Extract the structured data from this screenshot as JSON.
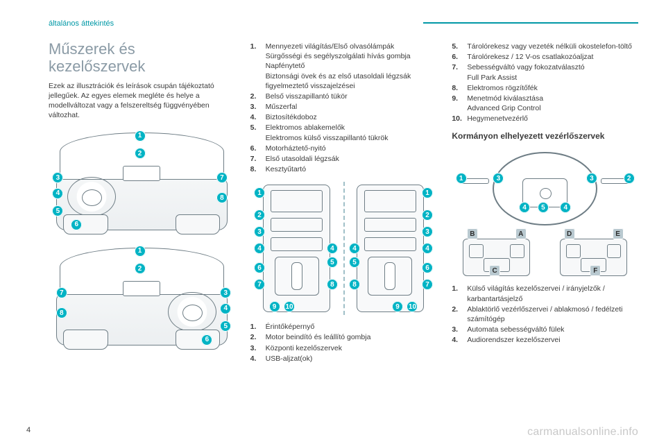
{
  "colors": {
    "accent": "#0098a6",
    "callout": "#00b3c4",
    "heading": "#8a9aa5",
    "text": "#3a3a3a",
    "line": "#6e7d85"
  },
  "section_label": "általános áttekintés",
  "title": "Műszerek és kezelőszervek",
  "intro": "Ezek az illusztrációk és leírások csupán tájékoztató jellegűek. Az egyes elemek megléte és helye a modellváltozat vagy a felszereltség függvényében változhat.",
  "dash_callouts": [
    "1",
    "2",
    "3",
    "4",
    "5",
    "6",
    "7",
    "8"
  ],
  "col2_list_a": [
    {
      "n": "1.",
      "lines": [
        "Mennyezeti világítás/Első olvasólámpák",
        "Sürgősségi és segélyszolgálati hívás gombja",
        "Napfénytető",
        "Biztonsági övek és az első utasoldali légzsák figyelmeztető visszajelzései"
      ]
    },
    {
      "n": "2.",
      "lines": [
        "Belső visszapillantó tükör"
      ]
    },
    {
      "n": "3.",
      "lines": [
        "Műszerfal"
      ]
    },
    {
      "n": "4.",
      "lines": [
        "Biztosítékdoboz"
      ]
    },
    {
      "n": "5.",
      "lines": [
        "Elektromos ablakemelők",
        "Elektromos külső visszapillantó tükrök"
      ]
    },
    {
      "n": "6.",
      "lines": [
        "Motorháztető-nyitó"
      ]
    },
    {
      "n": "7.",
      "lines": [
        "Első utasoldali légzsák"
      ]
    },
    {
      "n": "8.",
      "lines": [
        "Kesztyűtartó"
      ]
    }
  ],
  "console_callouts_num": [
    "1",
    "2",
    "3",
    "4",
    "5",
    "6",
    "7",
    "8",
    "9",
    "10"
  ],
  "col2_list_b": [
    {
      "n": "1.",
      "lines": [
        "Érintőképernyő"
      ]
    },
    {
      "n": "2.",
      "lines": [
        "Motor beindító és leállító gombja"
      ]
    },
    {
      "n": "3.",
      "lines": [
        "Központi kezelőszervek"
      ]
    },
    {
      "n": "4.",
      "lines": [
        "USB-aljzat(ok)"
      ]
    }
  ],
  "col3_list_a": [
    {
      "n": "5.",
      "lines": [
        "Tárolórekesz vagy vezeték nélküli okostelefon-töltő"
      ]
    },
    {
      "n": "6.",
      "lines": [
        "Tárolórekesz / 12 V-os csatlakozóaljzat"
      ]
    },
    {
      "n": "7.",
      "lines": [
        "Sebességváltó vagy fokozatválasztó",
        "Full Park Assist"
      ]
    },
    {
      "n": "8.",
      "lines": [
        "Elektromos rögzítőfék"
      ]
    },
    {
      "n": "9.",
      "lines": [
        "Menetmód kiválasztása",
        "Advanced Grip Control"
      ]
    },
    {
      "n": "10.",
      "lines": [
        "Hegymenetvezérlő"
      ]
    }
  ],
  "subhead": "Kormányon elhelyezett vezérlőszervek",
  "wheel_callouts_num": [
    "1",
    "2",
    "3",
    "4",
    "5"
  ],
  "wheel_callouts_sq": [
    "A",
    "B",
    "C",
    "D",
    "E",
    "F"
  ],
  "col3_list_b": [
    {
      "n": "1.",
      "lines": [
        "Külső világítás kezelőszervei / irányjelzők / karbantartásjelző"
      ]
    },
    {
      "n": "2.",
      "lines": [
        "Ablaktörlő vezérlőszervei / ablakmosó / fedélzeti számítógép"
      ]
    },
    {
      "n": "3.",
      "lines": [
        "Automata sebességváltó fülek"
      ]
    },
    {
      "n": "4.",
      "lines": [
        "Audiorendszer kezelőszervei"
      ]
    }
  ],
  "page_number": "4",
  "watermark": "carmanualsonline.info"
}
